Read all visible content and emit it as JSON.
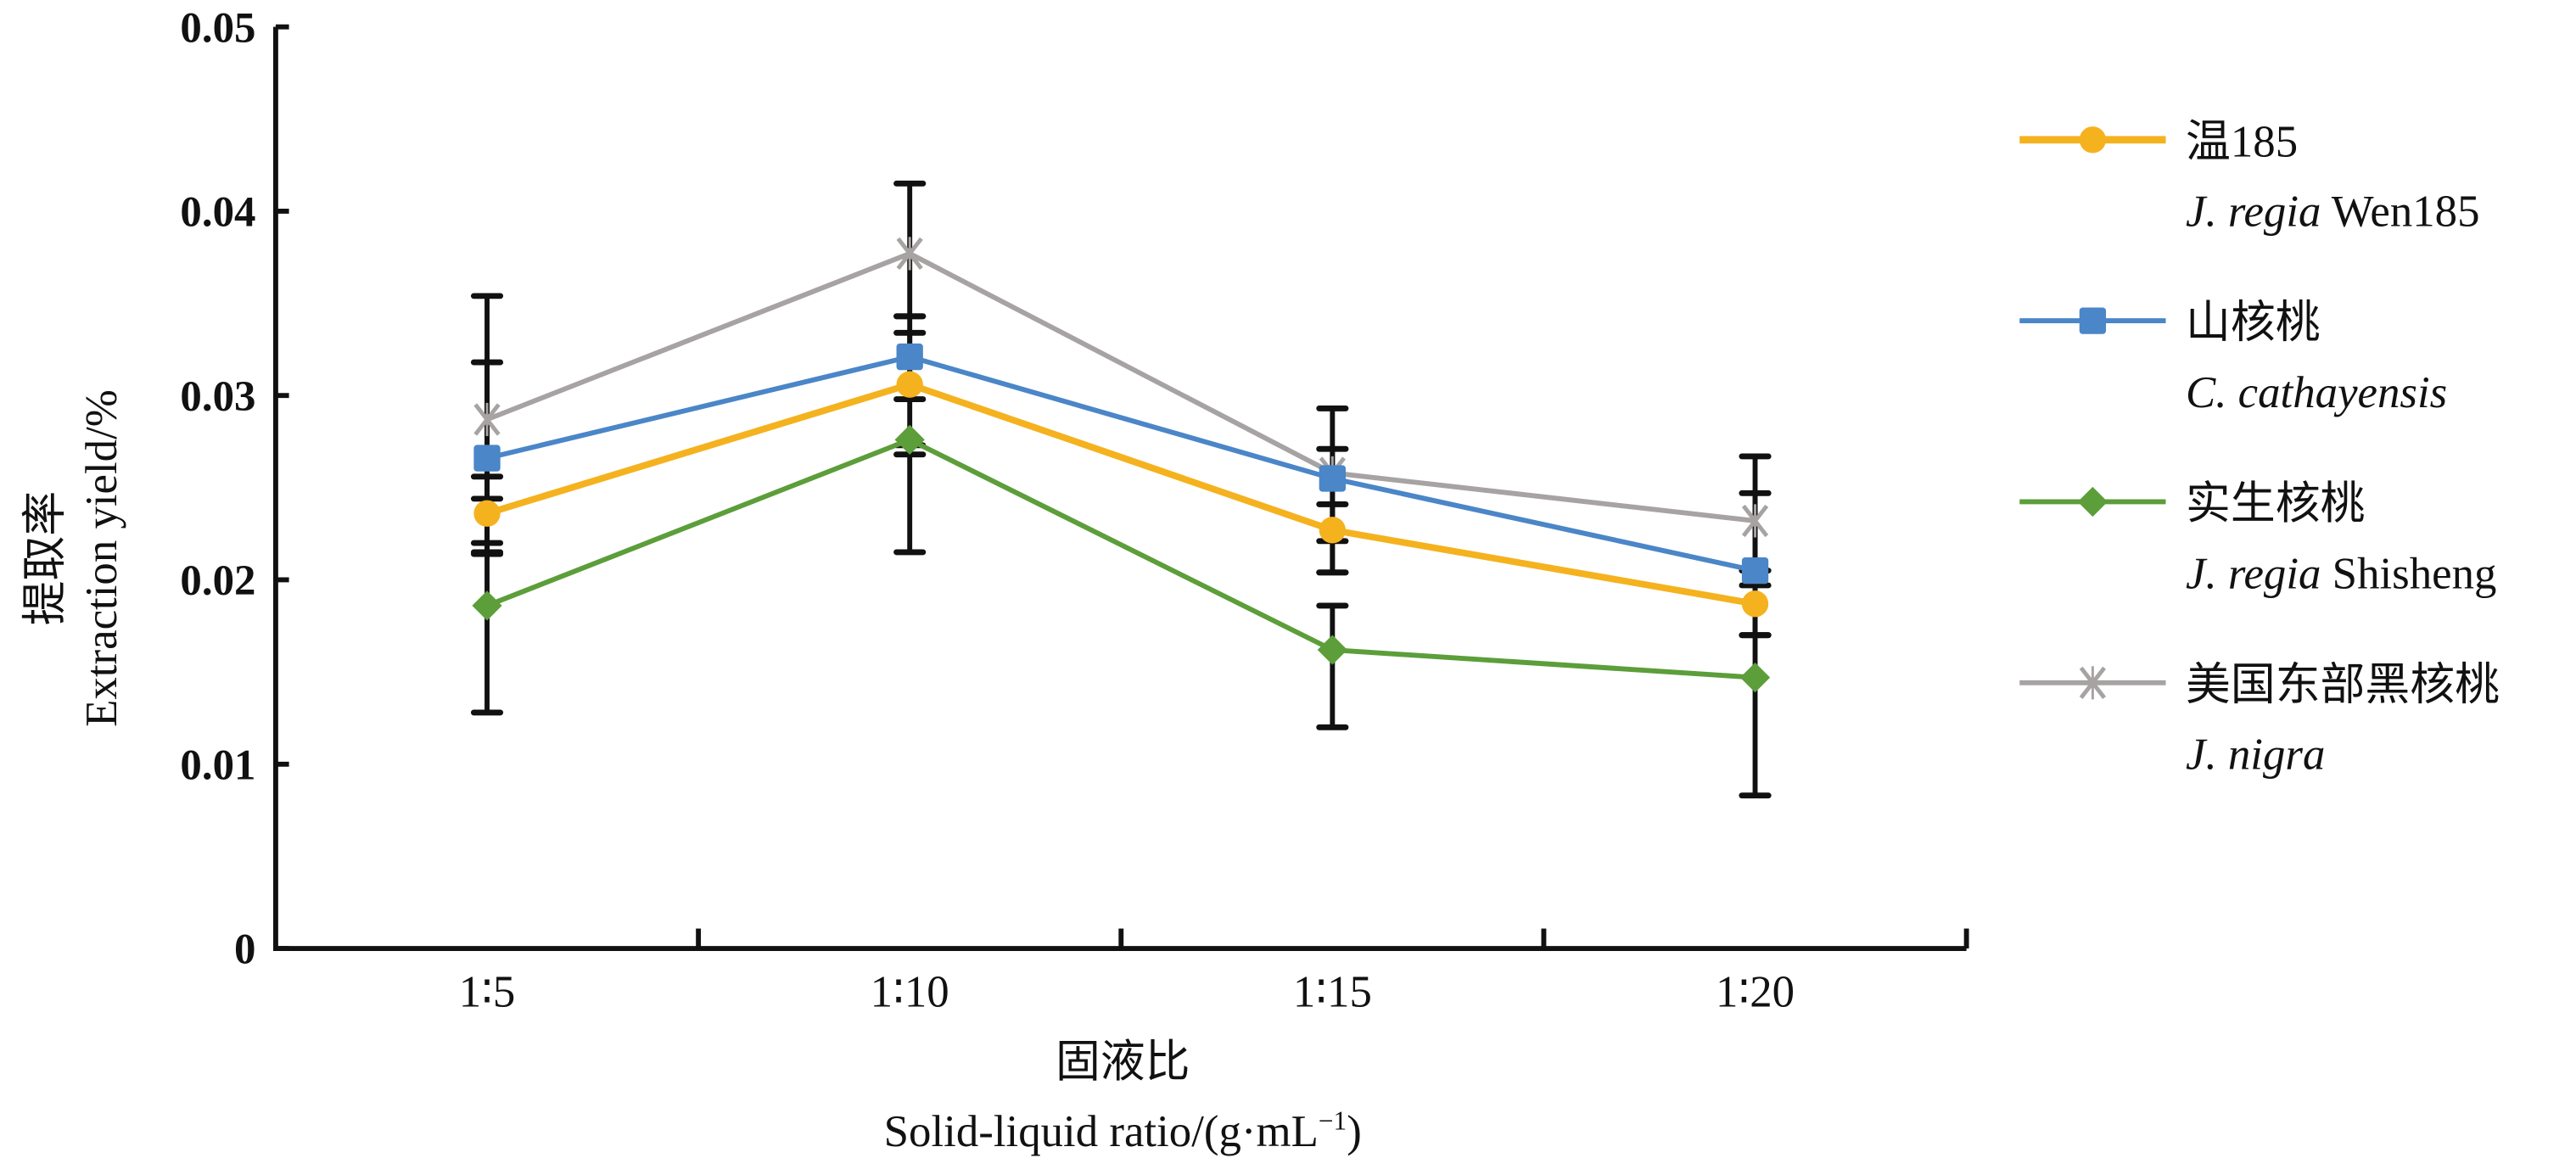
{
  "chart_data": {
    "type": "line",
    "title": "",
    "xlabel_zh": "固液比",
    "xlabel": "Solid-liquid ratio/(g·mL⁻¹)",
    "xlabel_parts": {
      "base": "Solid-liquid ratio/(g·mL",
      "sup": "−1",
      "close": ")"
    },
    "ylabel_zh": "提取率",
    "ylabel": "Extraction yield/%",
    "categories": [
      "1∶5",
      "1∶10",
      "1∶15",
      "1∶20"
    ],
    "ylim": [
      0,
      0.05
    ],
    "yticks": [
      0,
      0.01,
      0.02,
      0.03,
      0.04,
      0.05
    ],
    "ytick_labels": [
      "0",
      "0.01",
      "0.02",
      "0.03",
      "0.04",
      "0.05"
    ],
    "grid": false,
    "legend_position": "right",
    "series": [
      {
        "name_zh": "温185",
        "name_it": "J. regia",
        "name_rest": " Wen185",
        "marker": "circle",
        "color": "#F5B21F",
        "values": [
          0.0236,
          0.0306,
          0.0227,
          0.0187
        ],
        "error_low": [
          0.0215,
          0.0268,
          0.0204,
          0.017
        ],
        "error_high": [
          0.0256,
          0.0343,
          0.0241,
          0.0205
        ]
      },
      {
        "name_zh": "山核桃",
        "name_it": "C. cathayensis",
        "name_rest": "",
        "marker": "square",
        "color": "#4A86C8",
        "values": [
          0.0266,
          0.0321,
          0.0255,
          0.0205
        ],
        "error_low": [
          0.0214,
          0.0298,
          0.0221,
          0.017
        ],
        "error_high": [
          0.0318,
          0.0334,
          0.0271,
          0.0247
        ]
      },
      {
        "name_zh": "实生核桃",
        "name_it": "J. regia",
        "name_rest": " Shisheng",
        "marker": "diamond",
        "color": "#5C9E3A",
        "values": [
          0.0186,
          0.0276,
          0.0162,
          0.0147
        ],
        "error_low": [
          0.0128,
          0.0215,
          0.012,
          0.0083
        ],
        "error_high": [
          0.0244,
          0.0273,
          0.0186,
          0.017
        ]
      },
      {
        "name_zh": "美国东部黑核桃",
        "name_it": "J. nigra",
        "name_rest": "",
        "marker": "x",
        "color": "#A7A3A3",
        "values": [
          0.0287,
          0.0377,
          0.0258,
          0.0232
        ],
        "error_low": [
          0.022,
          0.0343,
          0.0204,
          0.0197
        ],
        "error_high": [
          0.0354,
          0.0415,
          0.0293,
          0.0267
        ]
      }
    ]
  }
}
